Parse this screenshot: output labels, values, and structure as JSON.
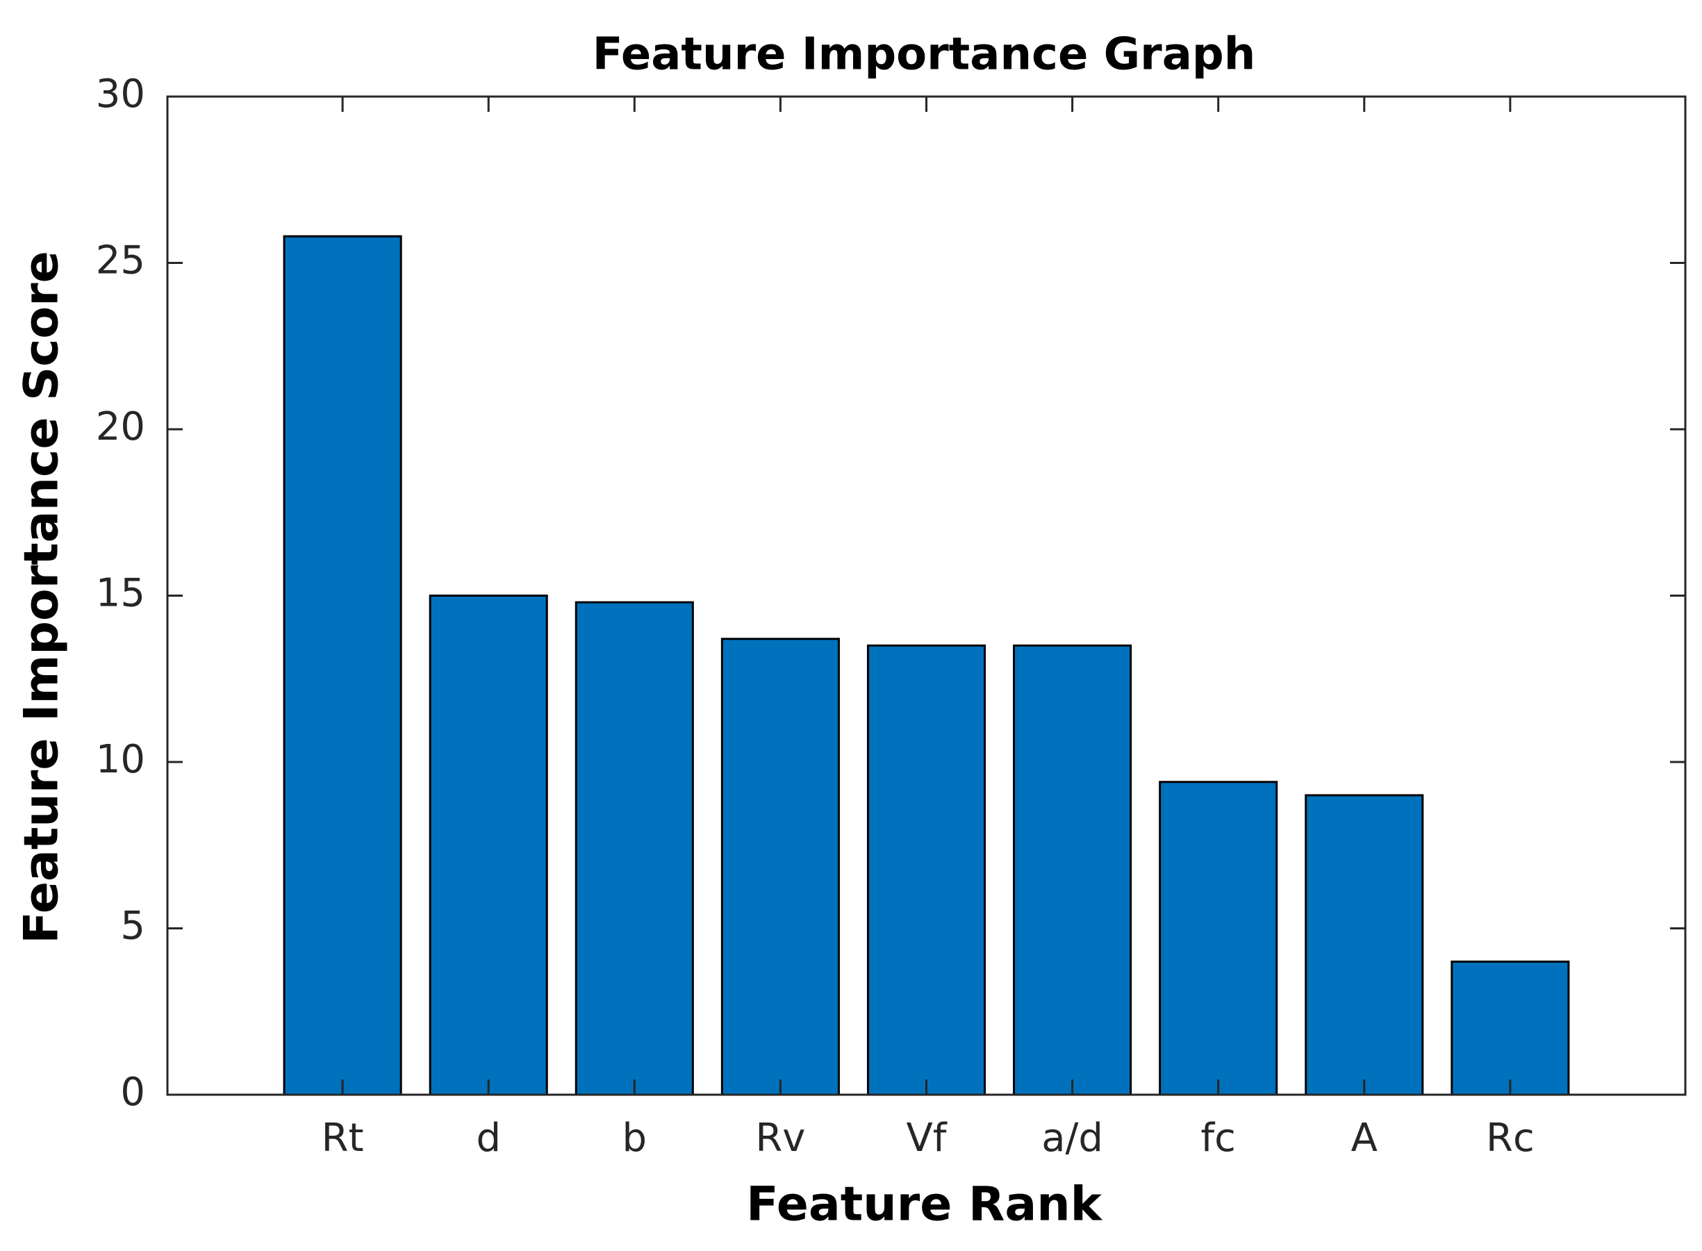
{
  "chart_data": {
    "type": "bar",
    "title": "Feature Importance Graph",
    "x_label": "Feature Rank",
    "y_label": "Feature Importance Score",
    "categories": [
      "Rt",
      "d",
      "b",
      "Rv",
      "Vf",
      "a/d",
      "fc",
      "A",
      "Rc"
    ],
    "values": [
      25.8,
      15.0,
      14.8,
      13.7,
      13.5,
      13.5,
      9.4,
      9.0,
      4.0
    ],
    "color": "#0072bd",
    "ylim": [
      0,
      30
    ],
    "yticks": [
      0,
      5,
      10,
      15,
      20,
      25,
      30
    ],
    "grid": false
  }
}
